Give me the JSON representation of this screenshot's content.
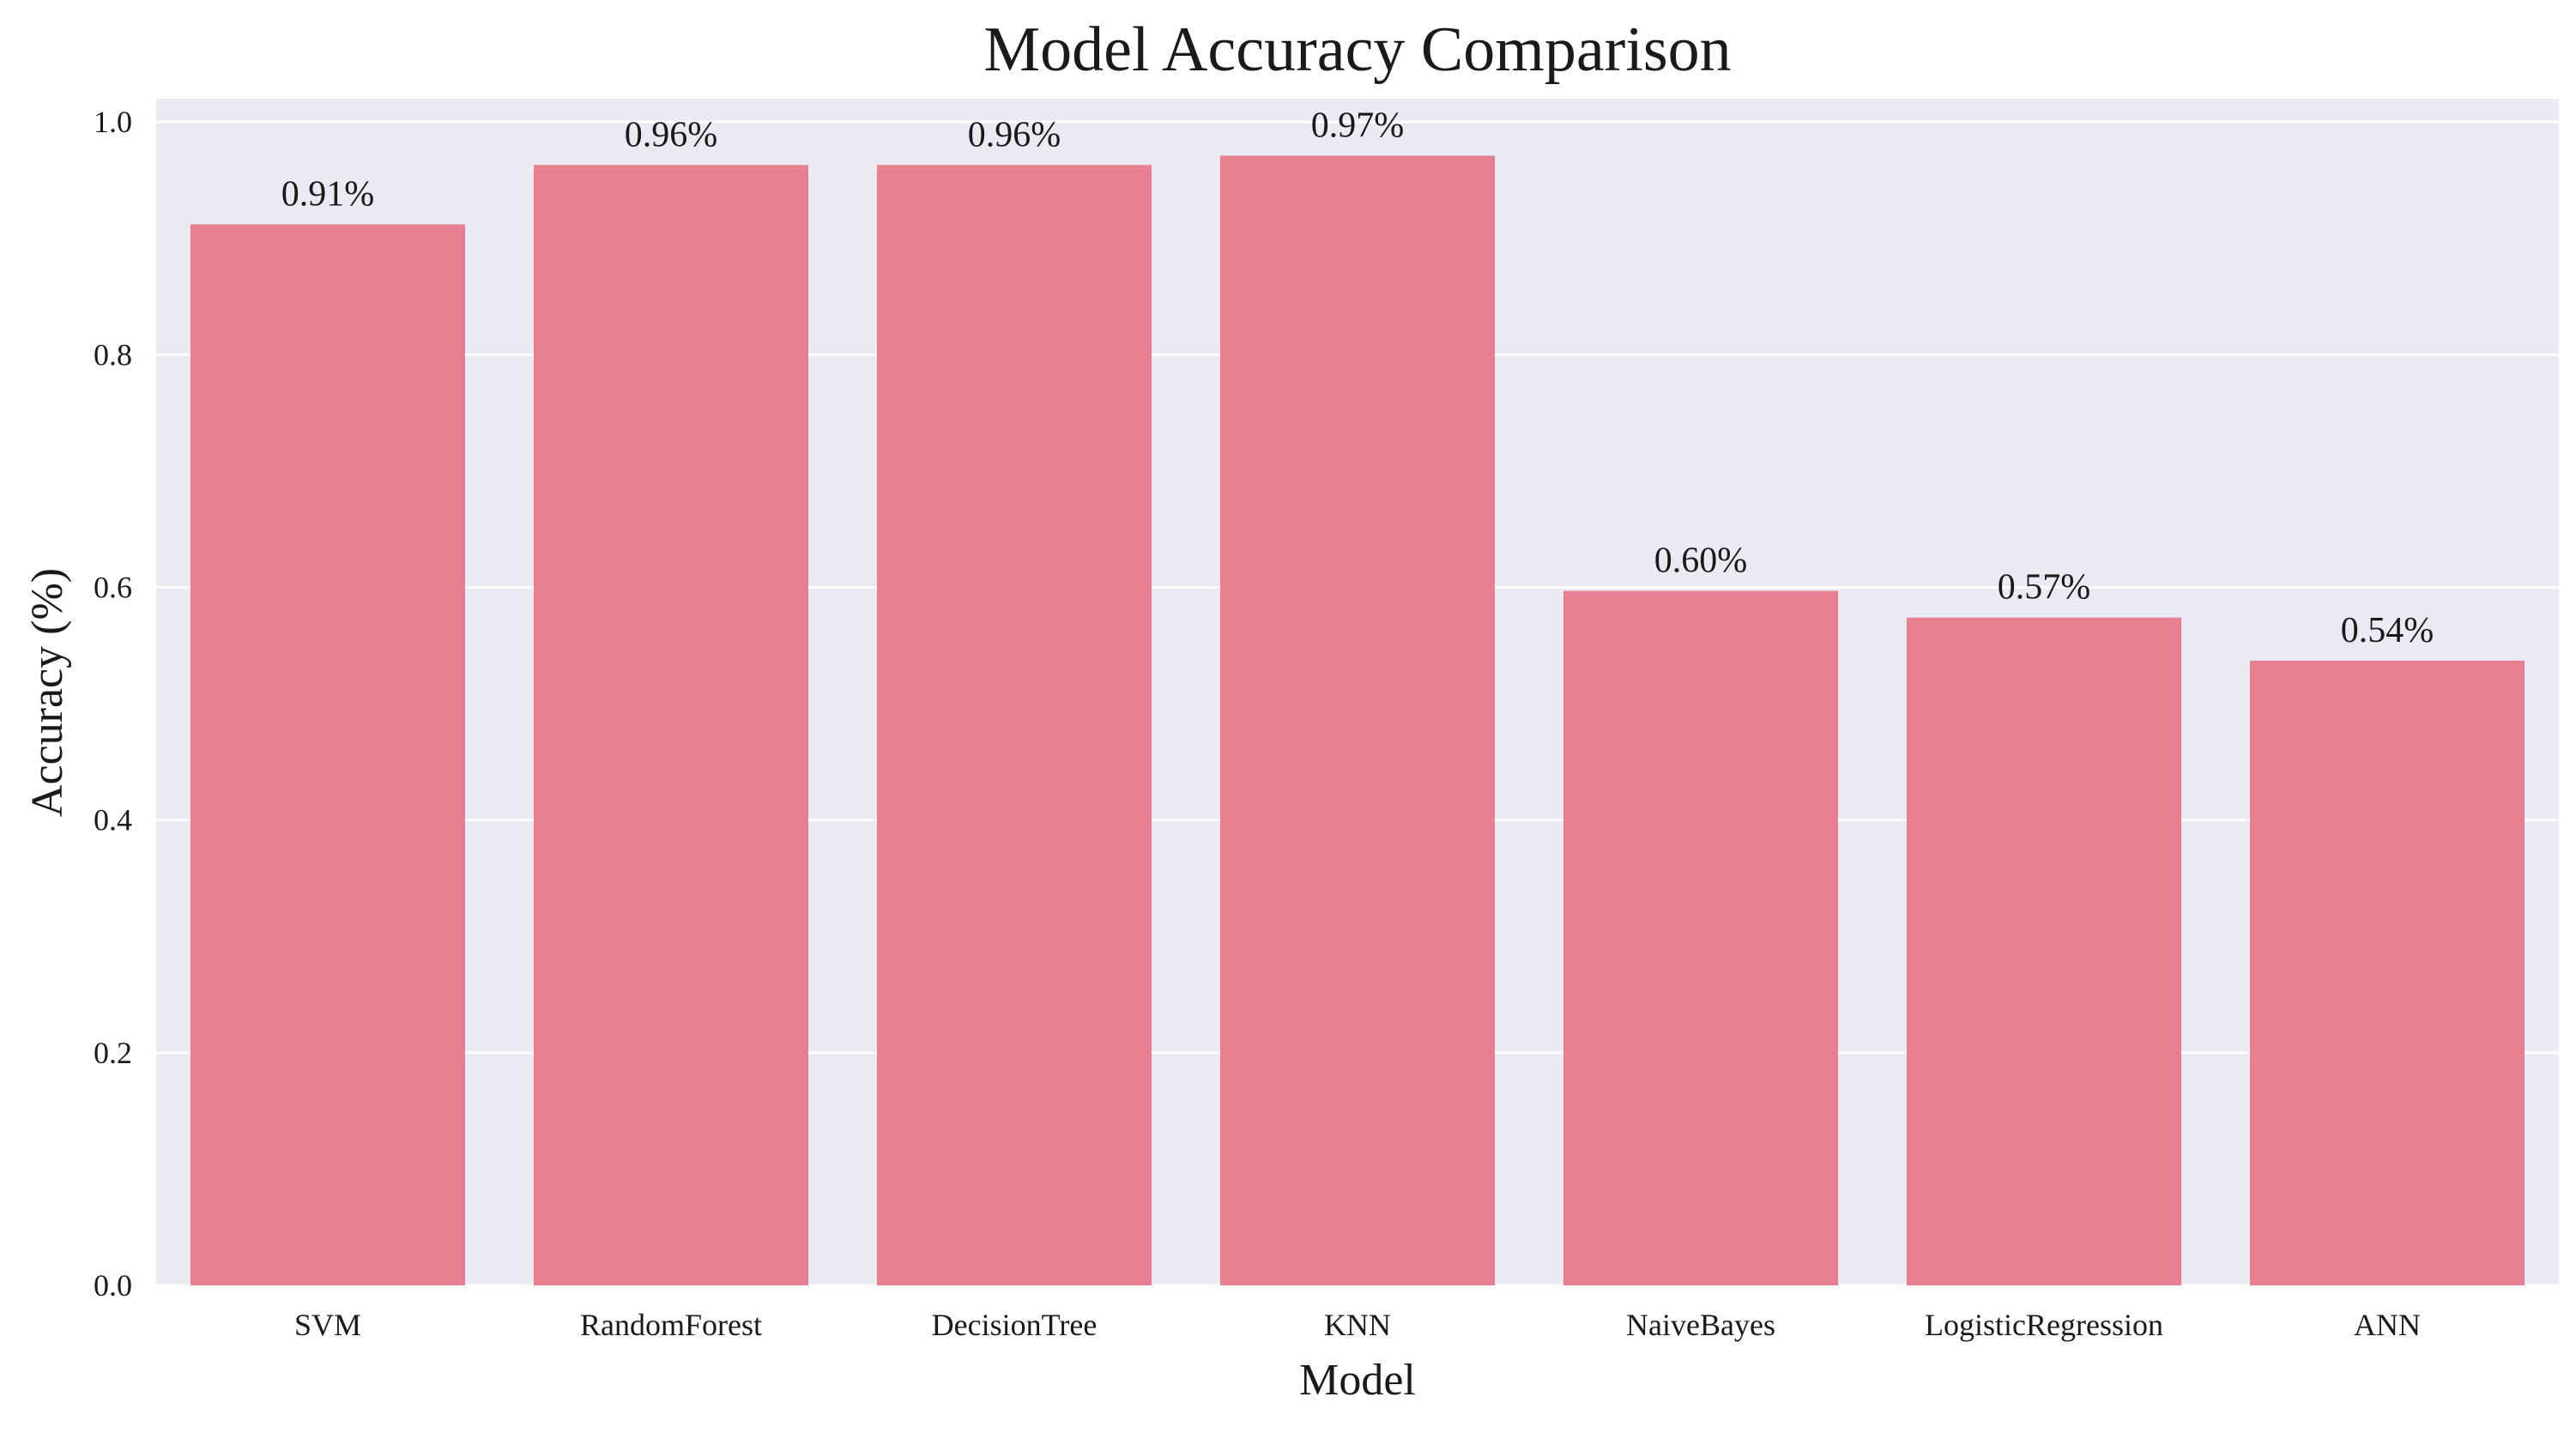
{
  "chart_data": {
    "type": "bar",
    "title": "Model Accuracy Comparison",
    "xlabel": "Model",
    "ylabel": "Accuracy (%)",
    "categories": [
      "SVM",
      "RandomForest",
      "DecisionTree",
      "KNN",
      "NaiveBayes",
      "LogisticRegression",
      "ANN"
    ],
    "values": [
      0.912,
      0.963,
      0.963,
      0.971,
      0.597,
      0.574,
      0.537
    ],
    "data_labels": [
      "0.91%",
      "0.96%",
      "0.96%",
      "0.97%",
      "0.60%",
      "0.57%",
      "0.54%"
    ],
    "yticks": [
      0.0,
      0.2,
      0.4,
      0.6,
      0.8,
      1.0
    ],
    "ytick_labels": [
      "0.0",
      "0.2",
      "0.4",
      "0.6",
      "0.8",
      "1.0"
    ],
    "ylim": [
      0,
      1.02
    ],
    "grid": true,
    "colors": {
      "bar": "#e68091",
      "plot_background": "#eaeaf2",
      "grid": "#ffffff",
      "text": "#1a1a1a"
    }
  }
}
